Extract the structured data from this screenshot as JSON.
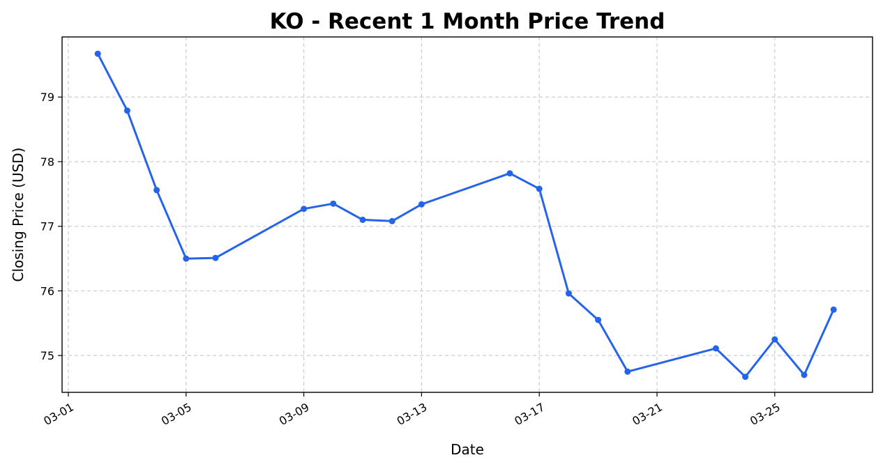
{
  "chart_data": {
    "type": "line",
    "title": "KO - Recent 1 Month Price Trend",
    "xlabel": "Date",
    "ylabel": "Closing Price (USD)",
    "x_ticks": [
      "03-01",
      "03-05",
      "03-09",
      "03-13",
      "03-17",
      "03-21",
      "03-25"
    ],
    "y_ticks": [
      75,
      76,
      77,
      78,
      79
    ],
    "ylim": [
      74.43,
      79.93
    ],
    "grid": true,
    "series": [
      {
        "color": "#2563eb",
        "marker": "circle",
        "points": [
          {
            "x": "03-02",
            "y": 79.67
          },
          {
            "x": "03-03",
            "y": 78.79
          },
          {
            "x": "03-04",
            "y": 77.56
          },
          {
            "x": "03-05",
            "y": 76.5
          },
          {
            "x": "03-06",
            "y": 76.51
          },
          {
            "x": "03-09",
            "y": 77.27
          },
          {
            "x": "03-10",
            "y": 77.35
          },
          {
            "x": "03-11",
            "y": 77.1
          },
          {
            "x": "03-12",
            "y": 77.08
          },
          {
            "x": "03-13",
            "y": 77.34
          },
          {
            "x": "03-16",
            "y": 77.82
          },
          {
            "x": "03-17",
            "y": 77.58
          },
          {
            "x": "03-18",
            "y": 75.96
          },
          {
            "x": "03-19",
            "y": 75.55
          },
          {
            "x": "03-20",
            "y": 74.75
          },
          {
            "x": "03-23",
            "y": 75.11
          },
          {
            "x": "03-24",
            "y": 74.67
          },
          {
            "x": "03-25",
            "y": 75.25
          },
          {
            "x": "03-26",
            "y": 74.7
          },
          {
            "x": "03-27",
            "y": 75.71
          }
        ]
      }
    ]
  }
}
